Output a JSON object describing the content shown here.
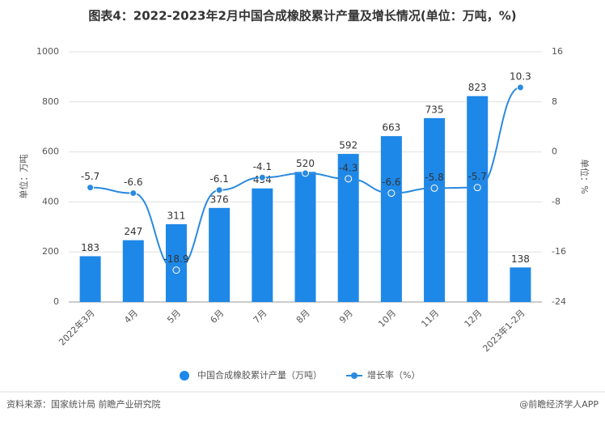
{
  "chart_data": {
    "type": "bar-line",
    "title": "图表4：2022-2023年2月中国合成橡胶累计产量及增长情况(单位：万吨，%)",
    "y_label": "单位：万吨",
    "y2_label": "单位：%",
    "categories": [
      "2022年3月",
      "4月",
      "5月",
      "6月",
      "7月",
      "8月",
      "9月",
      "10月",
      "11月",
      "12月",
      "2023年1-2月"
    ],
    "series": [
      {
        "name": "中国合成橡胶累计产量（万吨）",
        "type": "bar",
        "color": "#1e88e8",
        "values": [
          183,
          247,
          311,
          376,
          454,
          520,
          592,
          663,
          735,
          823,
          138
        ]
      },
      {
        "name": "增长率（%）",
        "type": "line",
        "axis": "y2",
        "color": "#2a8ae0",
        "values": [
          -5.7,
          -6.6,
          -18.9,
          -6.1,
          -4.1,
          -3.4,
          -4.3,
          -6.6,
          -5.8,
          -5.7,
          10.3
        ],
        "value_labels": [
          "-5.7",
          "-6.6",
          "-18.9",
          "-6.1",
          "-4.1",
          null,
          "-4.3",
          "-6.6",
          "-5.8",
          "-5.7",
          "10.3"
        ]
      }
    ],
    "ylim": [
      0,
      1000
    ],
    "yticks": [
      0,
      200,
      400,
      600,
      800,
      1000
    ],
    "y2lim": [
      -24,
      16
    ],
    "y2ticks": [
      -24,
      -16,
      -8,
      0,
      8,
      16
    ],
    "grid": true,
    "source": "资料来源：国家统计局 前瞻产业研究院",
    "credit": "@前瞻经济学人APP"
  }
}
